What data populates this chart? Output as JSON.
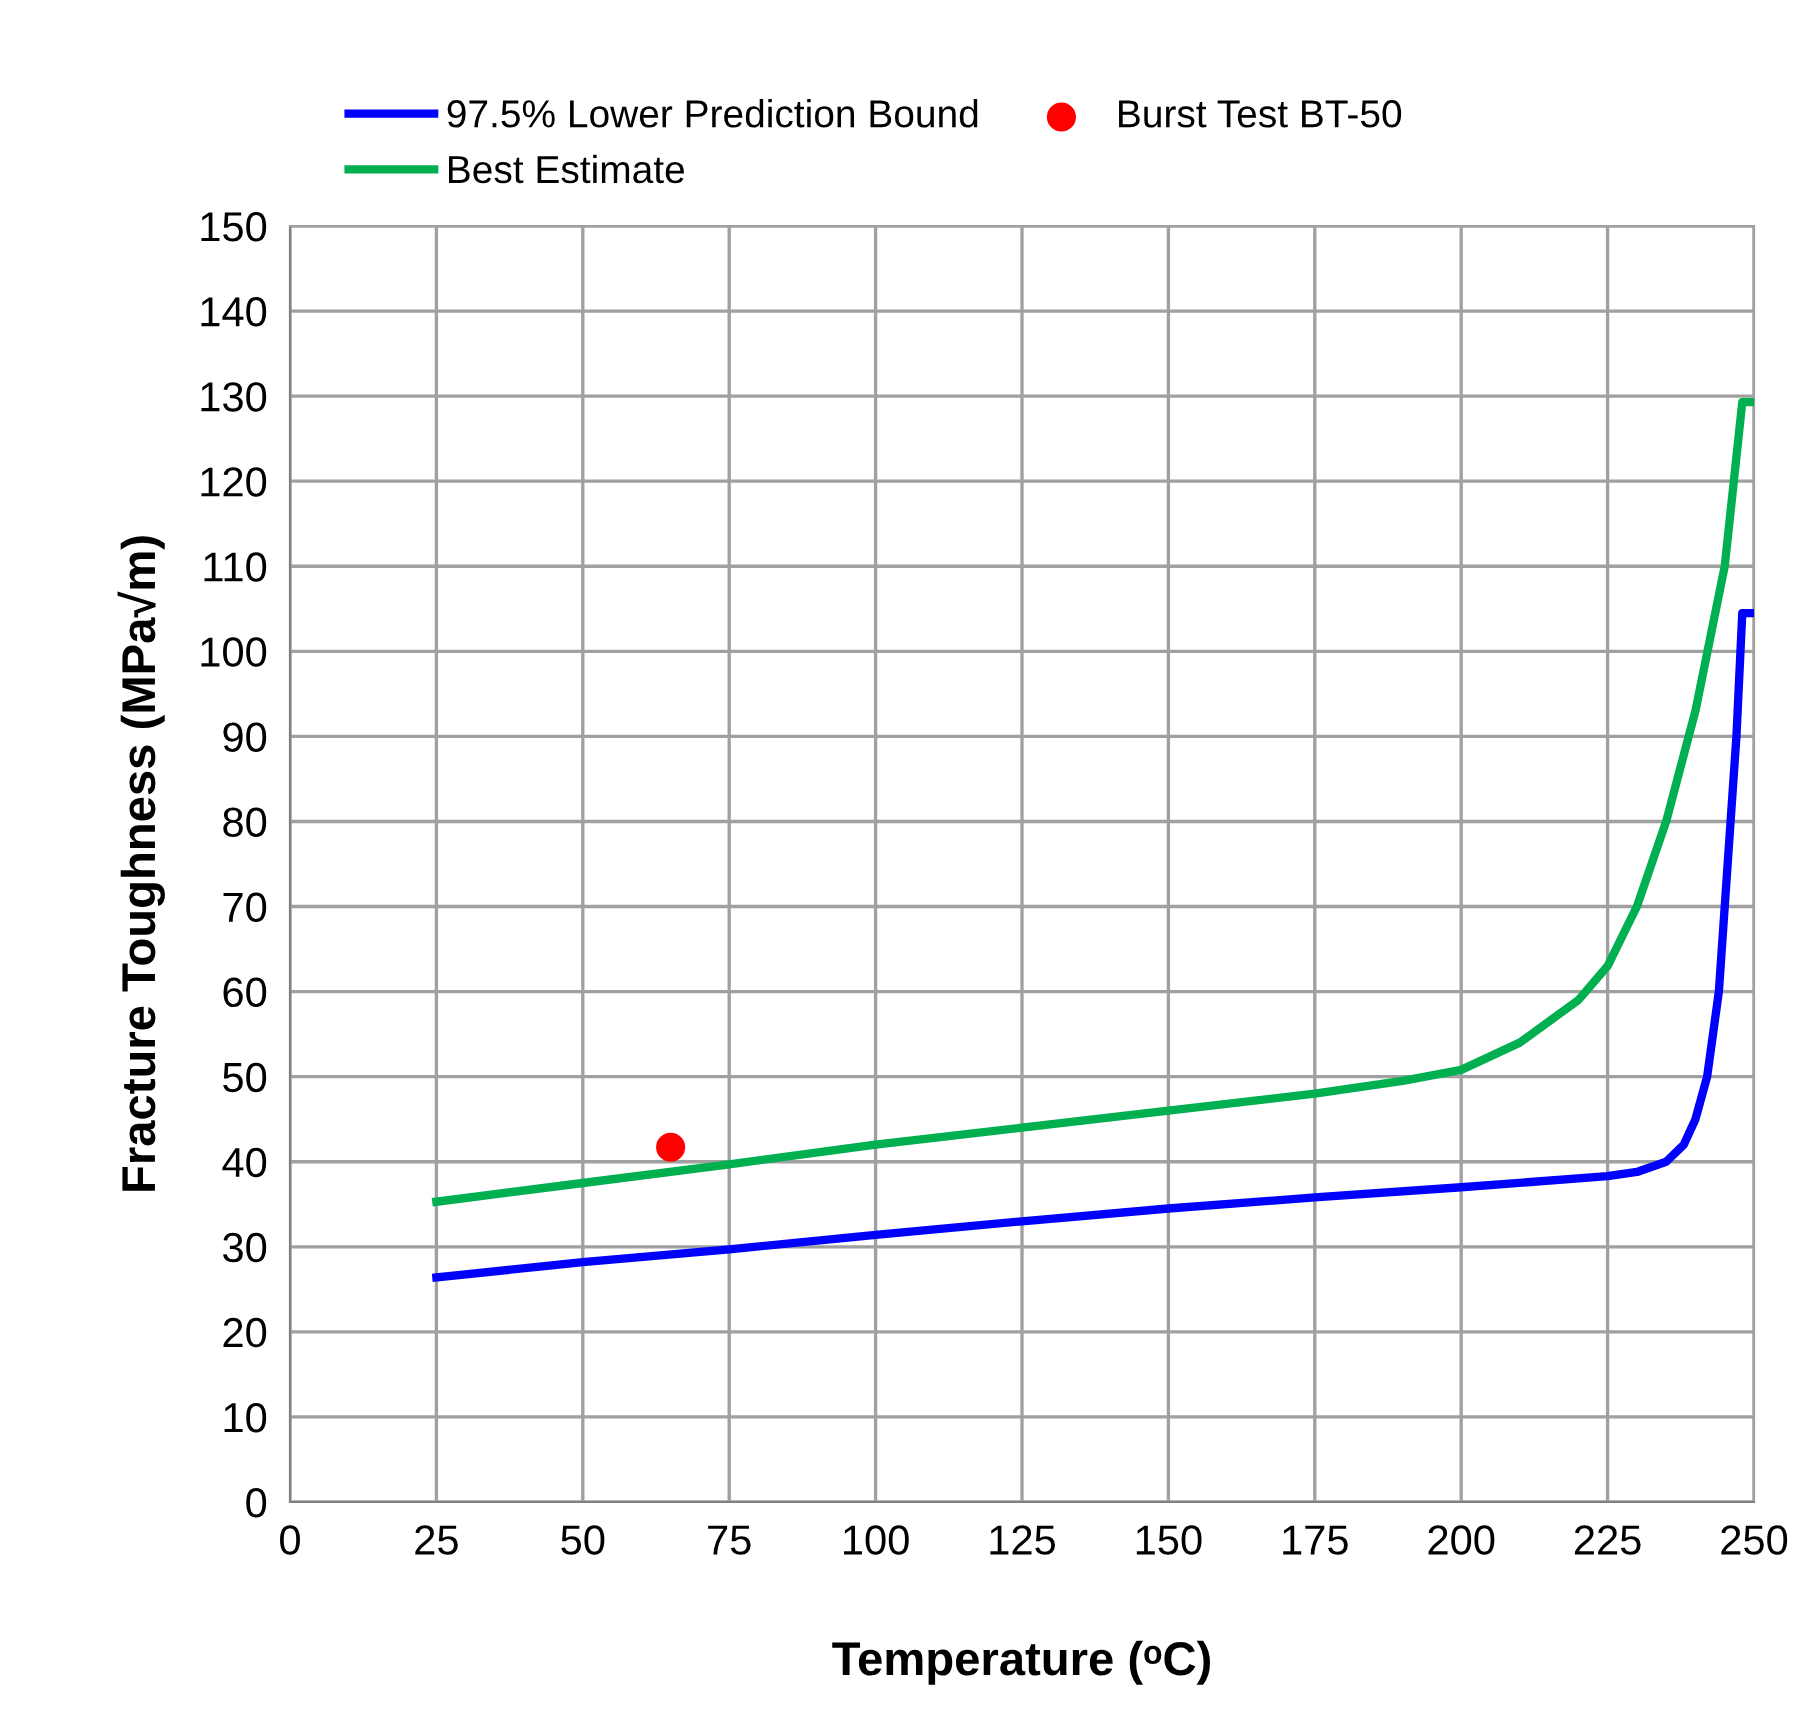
{
  "chart_data": {
    "type": "line",
    "xlabel": "Temperature (ᵒC)",
    "ylabel": "Fracture Toughness (MPa√m)",
    "xlim": [
      0,
      250
    ],
    "ylim": [
      0,
      150
    ],
    "xticks": [
      0,
      25,
      50,
      75,
      100,
      125,
      150,
      175,
      200,
      225,
      250
    ],
    "yticks": [
      0,
      10,
      20,
      30,
      40,
      50,
      60,
      70,
      80,
      90,
      100,
      110,
      120,
      130,
      140,
      150
    ],
    "grid": true,
    "legend": "top",
    "line_style": "solid",
    "series": [
      {
        "name": "97.5% Lower Prediction Bound",
        "color": "#0000ff",
        "marker": "none",
        "x": [
          25,
          50,
          75,
          100,
          125,
          150,
          175,
          200,
          225,
          230,
          235,
          238,
          240,
          242,
          244,
          245,
          246,
          247,
          248,
          250
        ],
        "values": [
          26.4,
          28.2,
          29.7,
          31.4,
          33,
          34.5,
          35.8,
          37,
          38.3,
          38.8,
          40,
          42,
          45,
          50,
          60,
          70,
          80,
          90,
          104.5,
          104.5
        ]
      },
      {
        "name": "Best Estimate",
        "color": "#00b050",
        "marker": "none",
        "x": [
          25,
          50,
          75,
          100,
          125,
          150,
          175,
          190,
          200,
          210,
          220,
          225,
          230,
          235,
          240,
          245,
          248,
          250
        ],
        "values": [
          35.3,
          37.5,
          39.7,
          42,
          44,
          46,
          48,
          49.5,
          50.8,
          54,
          59,
          63,
          70,
          80,
          93,
          110,
          129.3,
          129.3
        ]
      },
      {
        "name": "Burst Test BT-50",
        "type": "scatter",
        "color": "#ff0000",
        "marker": "circle",
        "x": [
          65
        ],
        "values": [
          41.7
        ]
      }
    ]
  }
}
